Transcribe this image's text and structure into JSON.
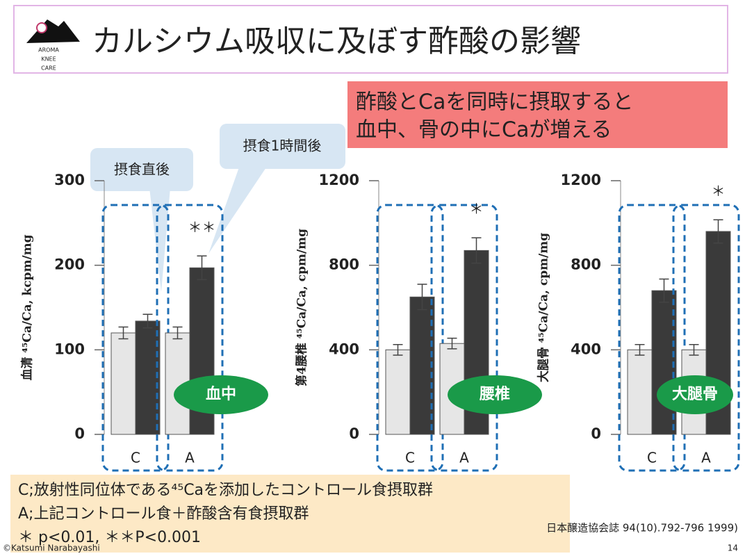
{
  "slide": {
    "title": "カルシウム吸収に及ぼす酢酸の影響",
    "logo": [
      "AROMA",
      "KNEE",
      "CARE"
    ],
    "highlight": [
      "酢酸とCaを同時に摂取すると",
      "血中、骨の中にCaが増える"
    ],
    "callouts": [
      "摂食直後",
      "摂食1時間後"
    ],
    "notes": [
      "C;放射性同位体である⁴⁵Caを添加したコントロール食摂取群",
      "A;上記コントロール食＋酢酸含有食摂取群",
      "＊ p<0.01, ＊＊P<0.001"
    ],
    "citation": "日本醸造協会誌 94(10).792-796 1999)",
    "copyright": "©Katsumi Narabayashi",
    "page": "14"
  },
  "chart_data": [
    {
      "type": "bar",
      "ylabel": "血清 ⁴⁵Ca/Ca, kcpm/mg",
      "label": "血中",
      "annotation": "＊＊",
      "categories": [
        "C",
        "A"
      ],
      "series": [
        {
          "color": "#e6e6e6",
          "values": [
            120,
            120
          ],
          "errors": [
            7,
            7
          ]
        },
        {
          "color": "#3a3a3a",
          "values": [
            134,
            197
          ],
          "errors": [
            8,
            14
          ]
        }
      ],
      "ylim": [
        0,
        300
      ],
      "yticks": [
        0,
        100,
        200,
        300
      ]
    },
    {
      "type": "bar",
      "ylabel": "第4腰椎 ⁴⁵Ca/Ca, cpm/mg",
      "label": "腰椎",
      "annotation": "＊",
      "categories": [
        "C",
        "A"
      ],
      "series": [
        {
          "color": "#e6e6e6",
          "values": [
            400,
            430
          ],
          "errors": [
            25,
            25
          ]
        },
        {
          "color": "#3a3a3a",
          "values": [
            650,
            870
          ],
          "errors": [
            60,
            60
          ]
        }
      ],
      "ylim": [
        0,
        1200
      ],
      "yticks": [
        0,
        400,
        800,
        1200
      ]
    },
    {
      "type": "bar",
      "ylabel": "大腿骨 ⁴⁵Ca/Ca, cpm/mg",
      "label": "大腿骨",
      "annotation": "＊",
      "categories": [
        "C",
        "A"
      ],
      "series": [
        {
          "color": "#e6e6e6",
          "values": [
            400,
            400
          ],
          "errors": [
            25,
            25
          ]
        },
        {
          "color": "#3a3a3a",
          "values": [
            680,
            960
          ],
          "errors": [
            55,
            55
          ]
        }
      ],
      "ylim": [
        0,
        1200
      ],
      "yticks": [
        0,
        400,
        800,
        1200
      ]
    }
  ]
}
